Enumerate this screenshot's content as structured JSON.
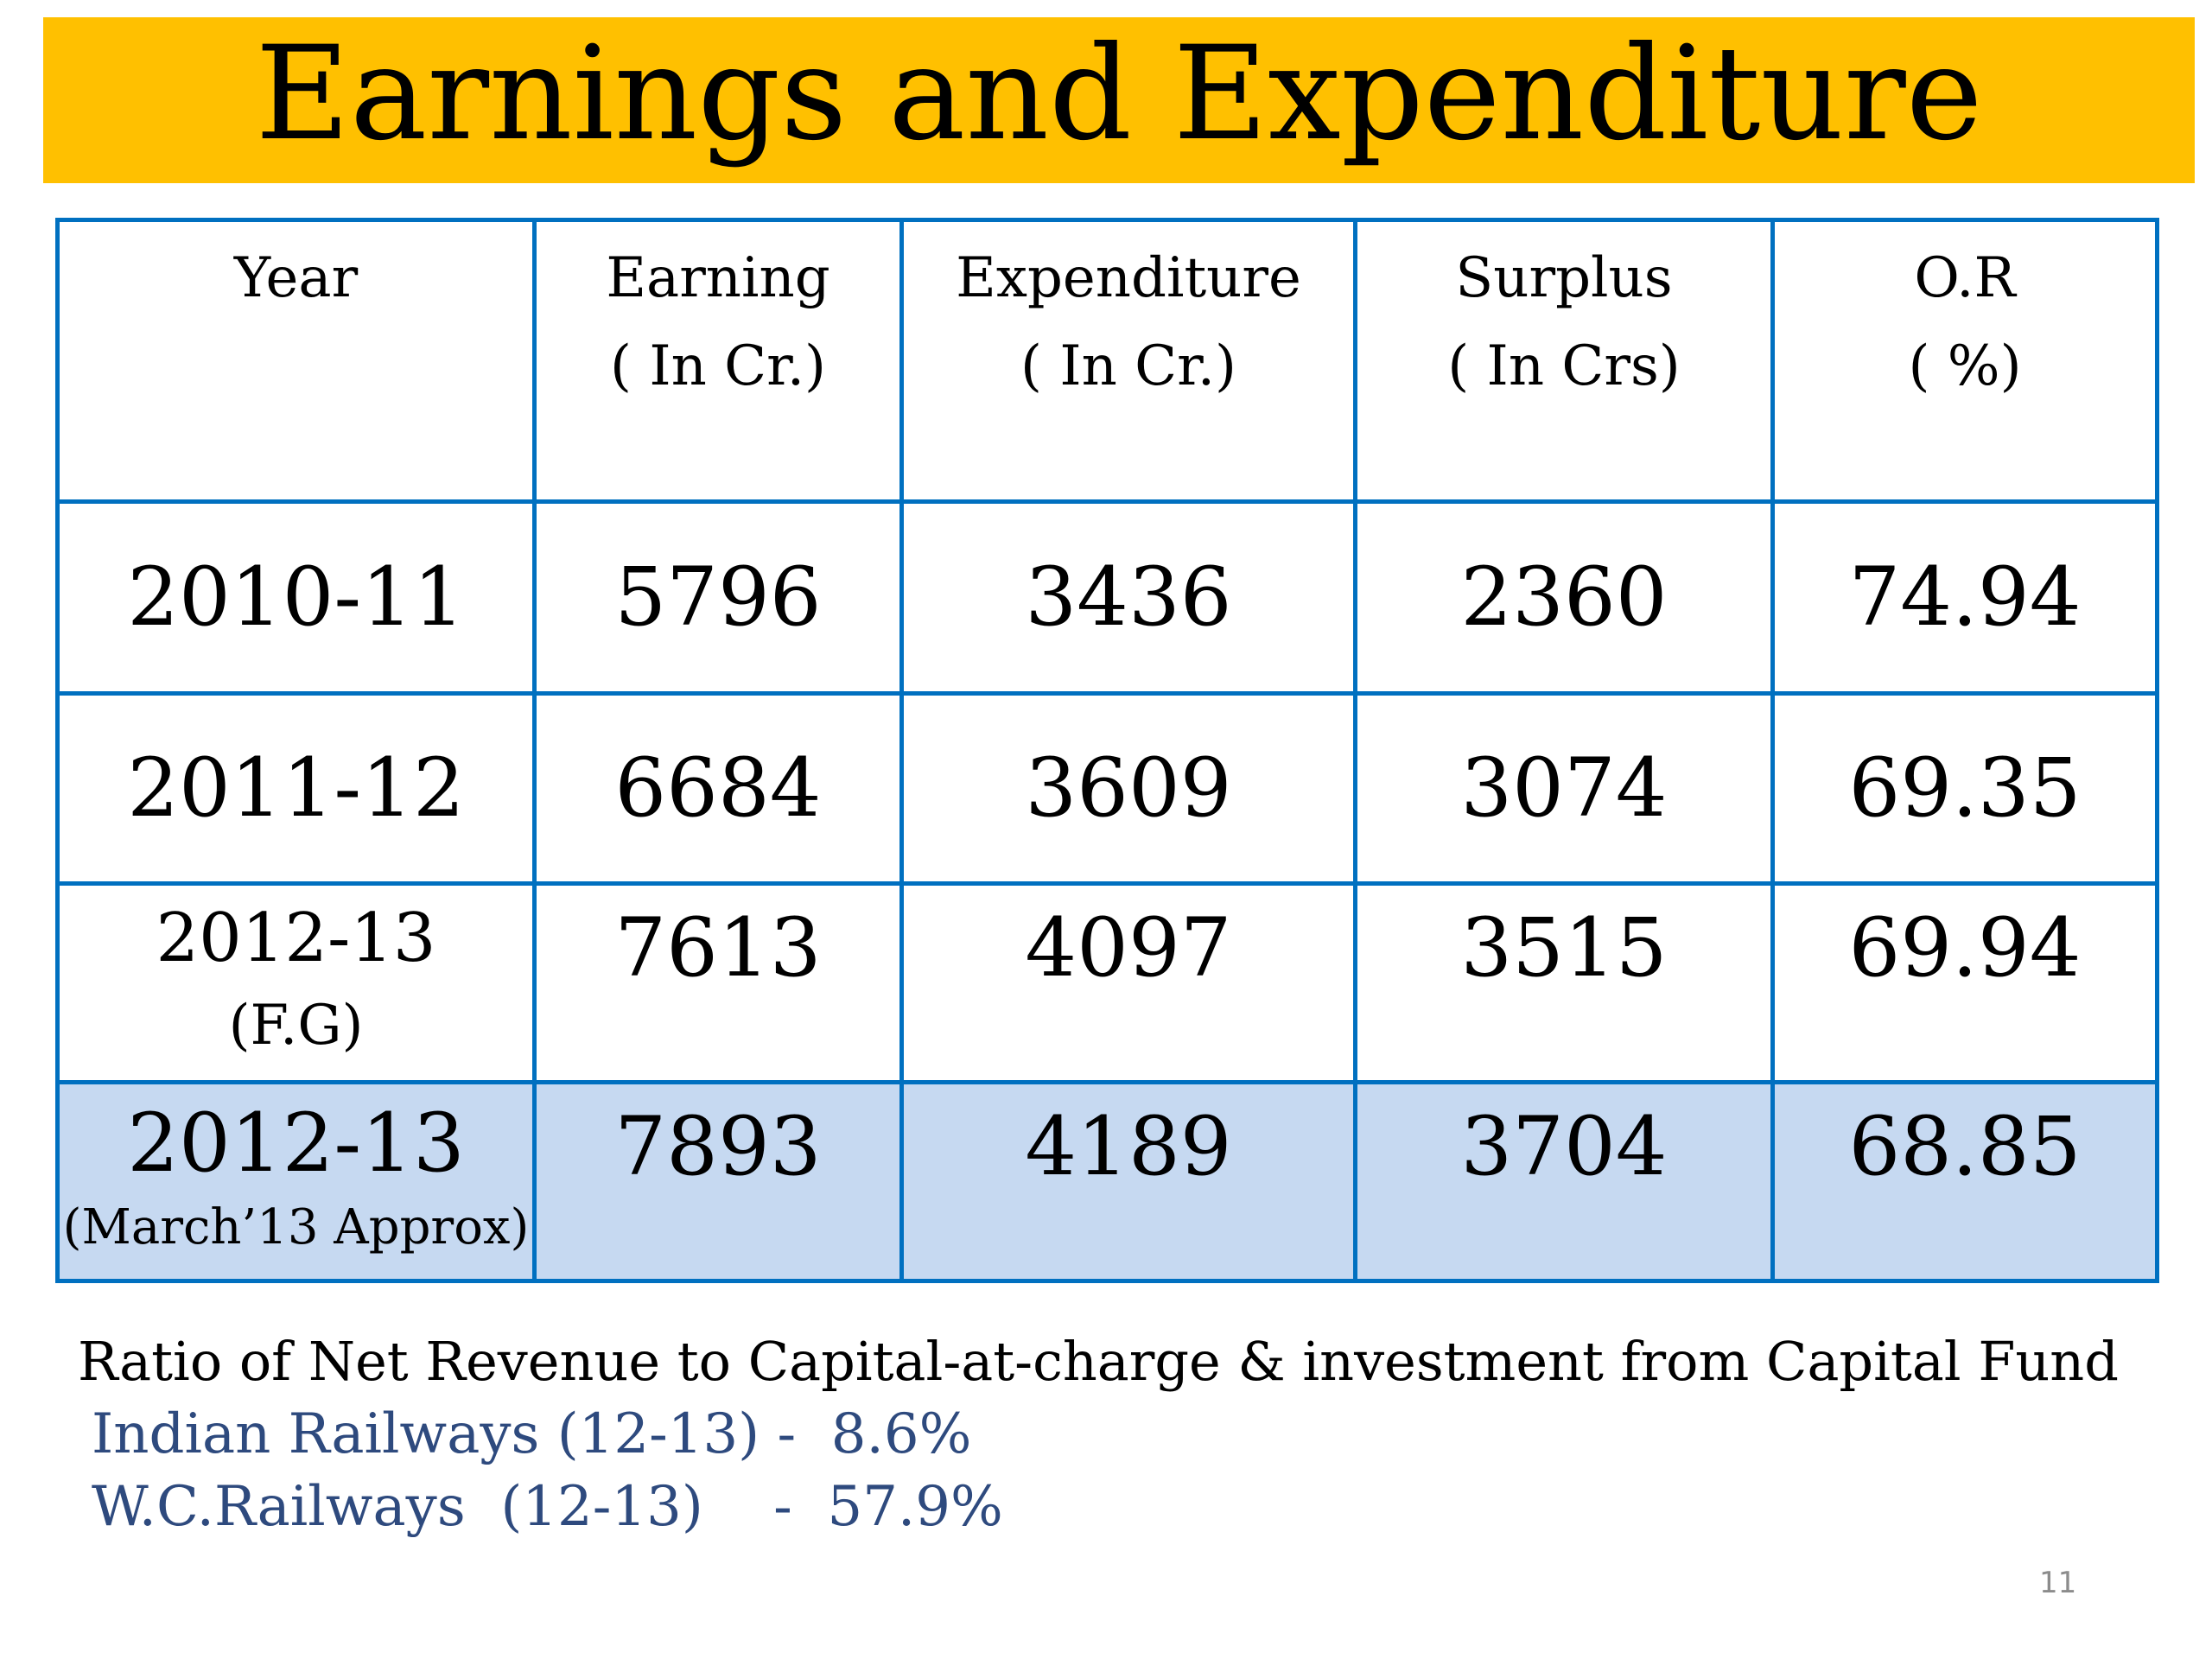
{
  "title": "Earnings and Expenditure",
  "colors": {
    "title_bar": "#ffc000",
    "table_border": "#0070c0",
    "highlight_row": "#c6d9f1",
    "note_blue": "#2e4a7e"
  },
  "table": {
    "headers": [
      {
        "line1": "Year",
        "line2": ""
      },
      {
        "line1": "Earning",
        "line2": "( In Cr.)"
      },
      {
        "line1": "Expenditure",
        "line2": "( In Cr.)"
      },
      {
        "line1": "Surplus",
        "line2": "( In Crs)"
      },
      {
        "line1": "O.R",
        "line2": "( %)"
      }
    ],
    "rows": [
      {
        "year": "2010-11",
        "year_note": "",
        "earning": "5796",
        "expenditure": "3436",
        "surplus": "2360",
        "or": "74.94"
      },
      {
        "year": "2011-12",
        "year_note": "",
        "earning": "6684",
        "expenditure": "3609",
        "surplus": "3074",
        "or": "69.35"
      },
      {
        "year": "2012-13",
        "year_note": "(F.G)",
        "earning": "7613",
        "expenditure": "4097",
        "surplus": "3515",
        "or": "69.94"
      },
      {
        "year": "2012-13",
        "year_note": "(March’13 Approx)",
        "earning": "7893",
        "expenditure": "4189",
        "surplus": "3704",
        "or": "68.85"
      }
    ]
  },
  "notes": {
    "ratio_label": "Ratio of Net Revenue to Capital-at-charge & investment from Capital Fund",
    "indian_railways": "Indian Railways (12-13) -  8.6%",
    "wc_railways": "W.C.Railways  (12-13)    -  57.9%"
  },
  "page_number": "11"
}
